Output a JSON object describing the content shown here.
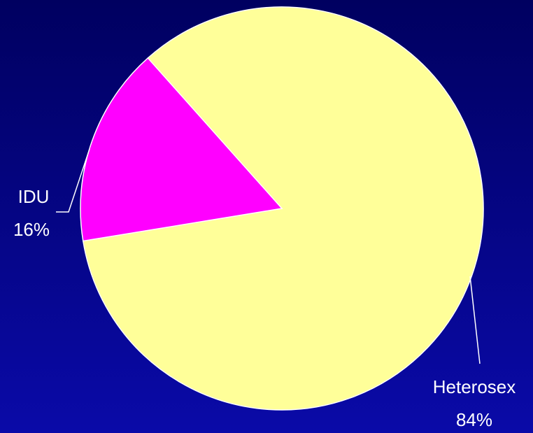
{
  "chart_data": {
    "type": "pie",
    "categories": [
      "Heterosex",
      "IDU"
    ],
    "values": [
      84,
      16
    ],
    "value_labels": [
      "84%",
      "16%"
    ],
    "colors": [
      "#ffff99",
      "#ff00ff"
    ]
  }
}
